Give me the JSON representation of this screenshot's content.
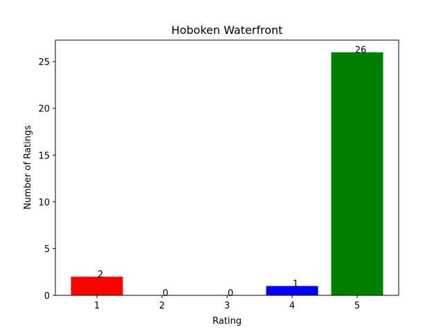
{
  "chart_data": {
    "type": "bar",
    "title": "Hoboken Waterfront",
    "xlabel": "Rating",
    "ylabel": "Number of Ratings",
    "categories": [
      "1",
      "2",
      "3",
      "4",
      "5"
    ],
    "values": [
      2,
      0,
      0,
      1,
      26
    ],
    "bar_colors": [
      "#ff0000",
      "#ff0000",
      "#ff0000",
      "#0000ff",
      "#008000"
    ],
    "data_labels": [
      "2",
      "0",
      "0",
      "1",
      "26"
    ],
    "ylim": [
      0,
      27.3
    ],
    "yticks": [
      0,
      5,
      10,
      15,
      20,
      25
    ],
    "ytick_labels": [
      "0",
      "5",
      "10",
      "15",
      "20",
      "25"
    ],
    "grid": false,
    "legend": "none"
  }
}
